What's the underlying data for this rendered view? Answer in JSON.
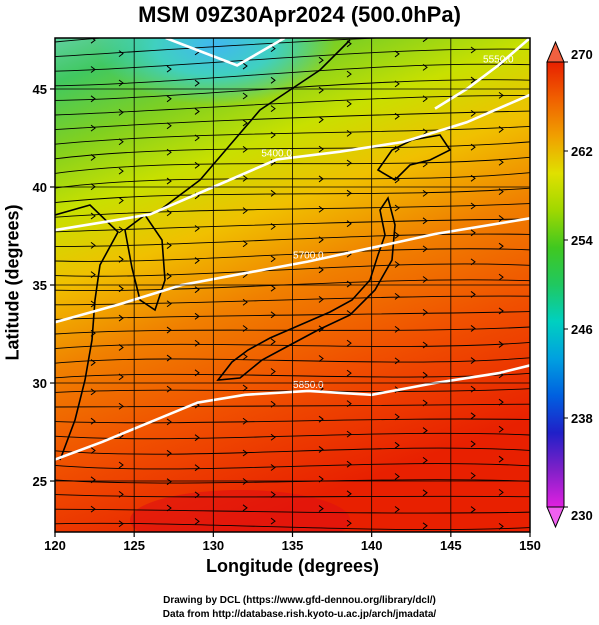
{
  "title": "MSM 09Z30Apr2024 (500.0hPa)",
  "credits": [
    "Drawing by DCL (https://www.gfd-dennou.org/library/dcl/)",
    "Data from http://database.rish.kyoto-u.ac.jp/arch/jmadata/"
  ],
  "chart_data": {
    "type": "heatmap",
    "variable_levels": "500.0hPa",
    "xlabel": "Longitude (degrees)",
    "ylabel": "Latitude  (degrees)",
    "xlim": [
      120,
      150
    ],
    "ylim": [
      22.4,
      47.6
    ],
    "xticks": [
      120,
      125,
      130,
      135,
      140,
      145,
      150
    ],
    "yticks": [
      25,
      30,
      35,
      40,
      45
    ],
    "colorbar": {
      "min": 230,
      "max": 270,
      "ticks": [
        230,
        238,
        246,
        254,
        262,
        270
      ],
      "colors": [
        "#e020e0",
        "#8020c8",
        "#2020c8",
        "#0060e0",
        "#00a0e0",
        "#00d0c0",
        "#20c860",
        "#40c820",
        "#a0d800",
        "#e0e000",
        "#f0a000",
        "#f06000",
        "#e82000"
      ]
    },
    "contours": [
      {
        "label": "5400.0",
        "points": [
          [
            120,
            37.8
          ],
          [
            123,
            38.2
          ],
          [
            126,
            38.6
          ],
          [
            130,
            40.0
          ],
          [
            134,
            41.4
          ],
          [
            138,
            41.8
          ],
          [
            142,
            42.3
          ],
          [
            146,
            43.3
          ],
          [
            150,
            44.7
          ]
        ]
      },
      {
        "label": "5700.0",
        "points": [
          [
            120,
            33.1
          ],
          [
            124,
            34.0
          ],
          [
            128,
            35.0
          ],
          [
            132,
            35.6
          ],
          [
            136,
            36.2
          ],
          [
            140,
            36.9
          ],
          [
            144,
            37.6
          ],
          [
            150,
            38.4
          ]
        ]
      },
      {
        "label": "5850.0",
        "points": [
          [
            120,
            26.1
          ],
          [
            123,
            27.0
          ],
          [
            126,
            28.0
          ],
          [
            129,
            29.0
          ],
          [
            132,
            29.4
          ],
          [
            136,
            29.6
          ],
          [
            140,
            29.4
          ],
          [
            144,
            30.0
          ],
          [
            148,
            30.5
          ],
          [
            150,
            30.9
          ]
        ]
      },
      {
        "label": "5550.0",
        "points": [
          [
            144,
            44.0
          ],
          [
            146,
            45.0
          ],
          [
            148,
            46.2
          ],
          [
            150,
            47.6
          ]
        ]
      },
      {
        "label": "",
        "points": [
          [
            127,
            47.6
          ],
          [
            131.5,
            46.2
          ],
          [
            134.5,
            47.6
          ]
        ]
      }
    ],
    "wind": "streamlines from west to east"
  }
}
